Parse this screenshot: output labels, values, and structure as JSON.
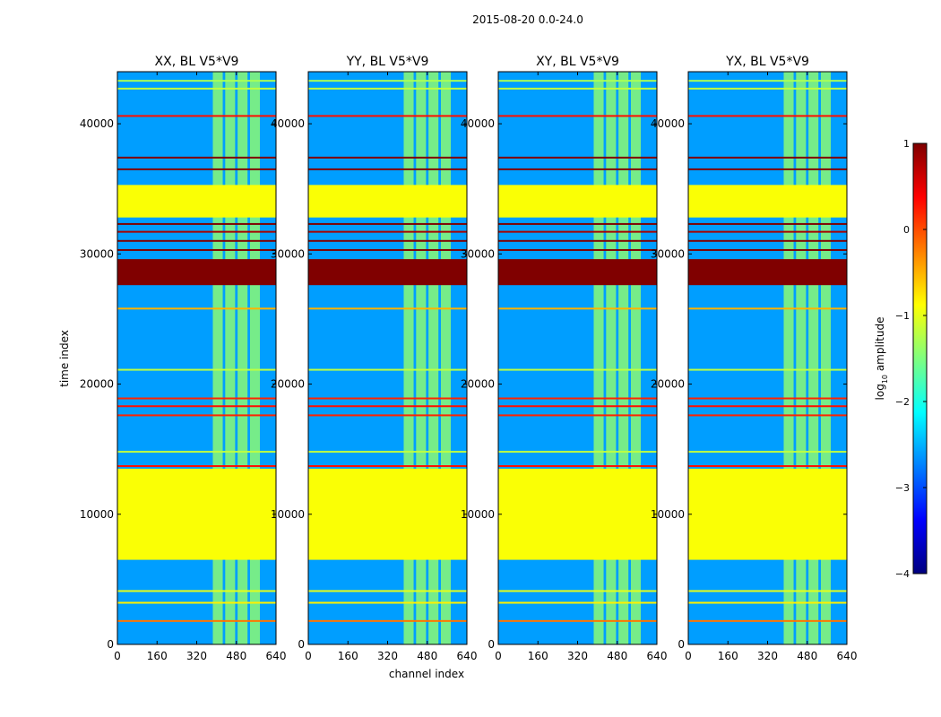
{
  "figure": {
    "suptitle": "2015-08-20 0.0-24.0"
  },
  "chart_data": {
    "type": "heatmap",
    "title": "2015-08-20 0.0-24.0",
    "xlabel": "channel index",
    "ylabel": "time index",
    "xlim": [
      0,
      640
    ],
    "ylim": [
      0,
      44000
    ],
    "xticks": [
      0,
      160,
      320,
      480,
      640
    ],
    "yticks": [
      0,
      10000,
      20000,
      30000,
      40000
    ],
    "xtick_labels": [
      "0",
      "160",
      "320",
      "480",
      "640"
    ],
    "ytick_labels": [
      "0",
      "10000",
      "20000",
      "30000",
      "40000"
    ],
    "panels": [
      {
        "title": "XX, BL V5*V9",
        "polarization": "XX"
      },
      {
        "title": "YY, BL V5*V9",
        "polarization": "YY"
      },
      {
        "title": "XY, BL V5*V9",
        "polarization": "XY"
      },
      {
        "title": "YX, BL V5*V9",
        "polarization": "YX"
      }
    ],
    "colorbar": {
      "label": "log₁₀ amplitude",
      "label_main": "log",
      "label_sub": "10",
      "label_rest": " amplitude",
      "range": [
        -4,
        1
      ],
      "ticks": [
        1,
        0,
        -1,
        -2,
        -3,
        -4
      ],
      "tick_labels": [
        "1",
        "0",
        "−1",
        "−2",
        "−3",
        "−4"
      ],
      "colormap": "jet"
    },
    "background_level": -2.6,
    "flagged_blocks": [
      {
        "t0": 6500,
        "t1": 13500,
        "level": -0.9
      },
      {
        "t0": 32800,
        "t1": 35300,
        "level": -0.9
      },
      {
        "t0": 27600,
        "t1": 29600,
        "level": 1.0
      }
    ],
    "rfi_lines": [
      {
        "t": 1800,
        "level": -0.2
      },
      {
        "t": 3200,
        "level": -0.8
      },
      {
        "t": 4100,
        "level": -1.0
      },
      {
        "t": 13700,
        "level": 0.3
      },
      {
        "t": 14800,
        "level": -1.2
      },
      {
        "t": 17600,
        "level": 0.2
      },
      {
        "t": 18300,
        "level": 0.3
      },
      {
        "t": 18900,
        "level": 0.2
      },
      {
        "t": 21100,
        "level": -1.2
      },
      {
        "t": 25800,
        "level": -0.5
      },
      {
        "t": 30300,
        "level": 1.0
      },
      {
        "t": 31000,
        "level": 1.0
      },
      {
        "t": 31700,
        "level": 0.8
      },
      {
        "t": 32300,
        "level": 1.0
      },
      {
        "t": 36500,
        "level": 1.0
      },
      {
        "t": 37400,
        "level": 1.0
      },
      {
        "t": 40600,
        "level": 0.3
      },
      {
        "t": 42700,
        "level": -1.2
      },
      {
        "t": 43300,
        "level": -1.3
      }
    ],
    "emission_channels": [
      {
        "c0": 385,
        "c1": 425
      },
      {
        "c0": 435,
        "c1": 475
      },
      {
        "c0": 485,
        "c1": 525
      },
      {
        "c0": 535,
        "c1": 575
      }
    ],
    "emission_level": -1.4
  }
}
